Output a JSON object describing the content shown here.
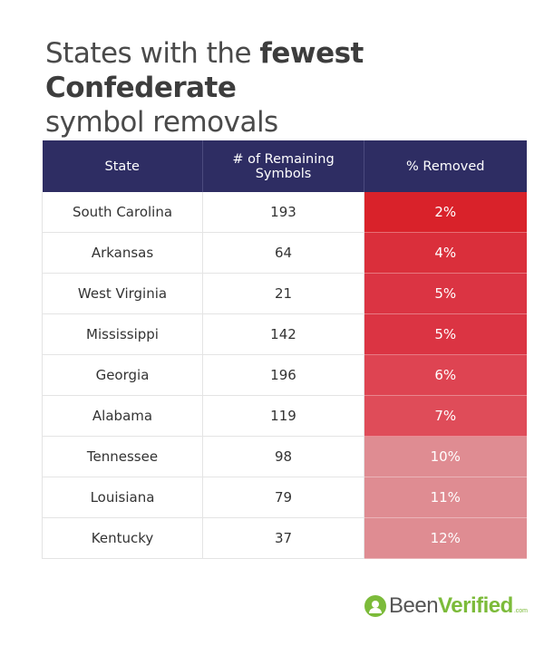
{
  "title": {
    "part1": "States with the ",
    "part2_bold": "fewest Confederate",
    "part3": "symbol removals"
  },
  "chart_data": {
    "type": "table",
    "columns": [
      "State",
      "# of Remaining Symbols",
      "% Removed"
    ],
    "rows": [
      {
        "state": "South Carolina",
        "remaining": 193,
        "removed": "2%",
        "removed_value": 2
      },
      {
        "state": "Arkansas",
        "remaining": 64,
        "removed": "4%",
        "removed_value": 4
      },
      {
        "state": "West Virginia",
        "remaining": 21,
        "removed": "5%",
        "removed_value": 5
      },
      {
        "state": "Mississippi",
        "remaining": 142,
        "removed": "5%",
        "removed_value": 5
      },
      {
        "state": "Georgia",
        "remaining": 196,
        "removed": "6%",
        "removed_value": 6
      },
      {
        "state": "Alabama",
        "remaining": 119,
        "removed": "7%",
        "removed_value": 7
      },
      {
        "state": "Tennessee",
        "remaining": 98,
        "removed": "10%",
        "removed_value": 10
      },
      {
        "state": "Louisiana",
        "remaining": 79,
        "removed": "11%",
        "removed_value": 11
      },
      {
        "state": "Kentucky",
        "remaining": 37,
        "removed": "12%",
        "removed_value": 12
      }
    ]
  },
  "colors": {
    "header_bg": "#2e2d63",
    "removed_scale": [
      "#d9222a",
      "#da2f3b",
      "#db3443",
      "#db3443",
      "#de4452",
      "#df4c59",
      "#df8c92",
      "#df8c92",
      "#df8c92"
    ],
    "brand_green": "#7cbb3a"
  },
  "logo": {
    "icon": "person-in-circle-icon",
    "been": "Been",
    "verified": "Verified",
    "com": ".com"
  }
}
